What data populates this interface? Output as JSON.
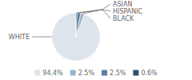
{
  "chart_data": {
    "type": "pie",
    "categories": [
      "WHITE",
      "ASIAN",
      "HISPANIC",
      "BLACK"
    ],
    "values": [
      94.4,
      2.5,
      2.5,
      0.6
    ],
    "value_labels": [
      "94.4%",
      "2.5%",
      "2.5%",
      "0.6%"
    ],
    "colors": [
      "#dde4ec",
      "#9ab5ca",
      "#5a7fa0",
      "#2c4f6b"
    ],
    "legend": "bottom"
  }
}
